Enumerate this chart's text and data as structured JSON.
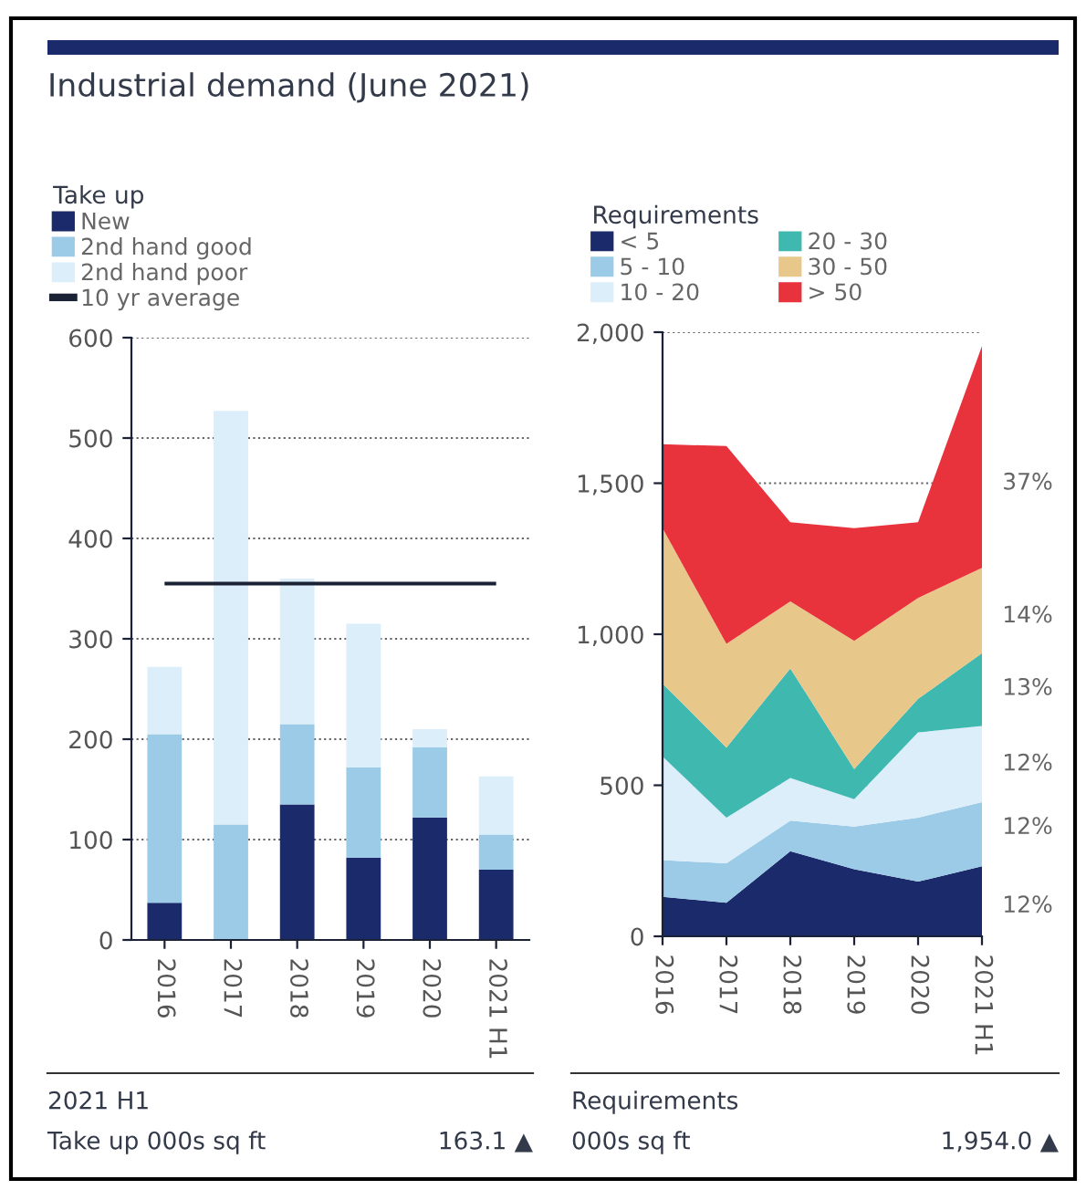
{
  "chart_data": [
    {
      "type": "bar",
      "stacked": true,
      "title": "Industrial demand (June 2021)",
      "legend_title": "Take up",
      "legend": "top",
      "grid": "y",
      "categories": [
        "2016",
        "2017",
        "2018",
        "2019",
        "2020",
        "2021 H1"
      ],
      "series": [
        {
          "name": "New",
          "color": "#1b2a6b",
          "values": [
            37,
            0,
            135,
            82,
            122,
            70
          ]
        },
        {
          "name": "2nd hand good",
          "color": "#9ccbe8",
          "values": [
            168,
            115,
            80,
            90,
            70,
            35
          ]
        },
        {
          "name": "2nd hand poor",
          "color": "#dceefa",
          "values": [
            67,
            412,
            145,
            143,
            18,
            58
          ]
        }
      ],
      "ref_lines": [
        {
          "axis": "y",
          "value": 355,
          "label": "10 yr average",
          "color": "#1b2236"
        }
      ],
      "ylim": [
        0,
        600
      ],
      "yticks": [
        0,
        100,
        200,
        300,
        400,
        500,
        600
      ],
      "annotations": [
        "2021 H1",
        "Take up 000s sq ft",
        "163.1 ▲"
      ]
    },
    {
      "type": "area",
      "stacked": true,
      "legend_title": "Requirements",
      "legend": "top",
      "grid": "y",
      "categories": [
        "2016",
        "2017",
        "2018",
        "2019",
        "2020",
        "2021 H1"
      ],
      "series": [
        {
          "name": "< 5",
          "color": "#1b2a6b",
          "values": [
            131,
            111,
            282,
            222,
            181,
            232
          ]
        },
        {
          "name": "5 - 10",
          "color": "#9ccbe8",
          "values": [
            121,
            131,
            101,
            141,
            212,
            212
          ]
        },
        {
          "name": "10 - 20",
          "color": "#dceefa",
          "values": [
            343,
            151,
            141,
            91,
            282,
            252
          ]
        },
        {
          "name": "20 - 30",
          "color": "#3fb8b0",
          "values": [
            242,
            232,
            363,
            100,
            111,
            241
          ]
        },
        {
          "name": "30 - 50",
          "color": "#e8c88a",
          "values": [
            514,
            343,
            222,
            424,
            334,
            283
          ]
        },
        {
          "name": "> 50",
          "color": "#e8323c",
          "values": [
            278,
            655,
            262,
            373,
            251,
            734
          ]
        }
      ],
      "ylim": [
        0,
        2000
      ],
      "yticks": [
        0,
        {
          "value": 500,
          "label": "500"
        },
        {
          "value": 1000,
          "label": "1,000"
        },
        {
          "value": 1500,
          "label": "1,500"
        },
        {
          "value": 2000,
          "label": "2,000"
        }
      ],
      "annotations": [
        {
          "text": "37%",
          "x": "2021 H1",
          "y": 1500
        },
        {
          "text": "14%",
          "x": "2021 H1",
          "y": 1060
        },
        {
          "text": "13%",
          "x": "2021 H1",
          "y": 820
        },
        {
          "text": "12%",
          "x": "2021 H1",
          "y": 570
        },
        {
          "text": "12%",
          "x": "2021 H1",
          "y": 360
        },
        {
          "text": "12%",
          "x": "2021 H1",
          "y": 100
        },
        "Requirements",
        "000s sq ft",
        "1,954.0 ▲"
      ]
    }
  ]
}
